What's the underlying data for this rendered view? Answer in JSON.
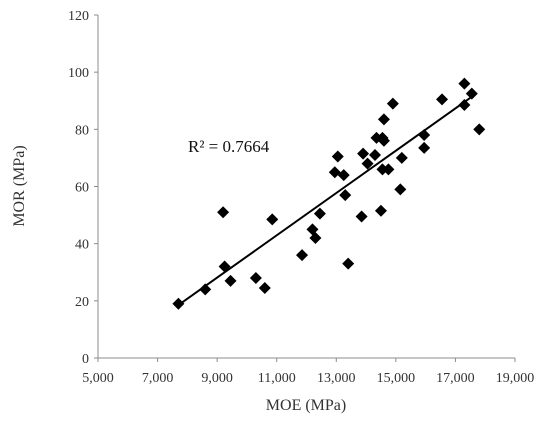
{
  "chart_data": {
    "type": "scatter",
    "title": "",
    "xlabel": "MOE (MPa)",
    "ylabel": "MOR (MPa)",
    "xlim": [
      5000,
      19000
    ],
    "ylim": [
      0,
      120
    ],
    "xticks": [
      5000,
      7000,
      9000,
      11000,
      13000,
      15000,
      17000,
      19000
    ],
    "yticks": [
      0,
      20,
      40,
      60,
      80,
      100,
      120
    ],
    "xtick_labels": [
      "5,000",
      "7,000",
      "9,000",
      "11,000",
      "13,000",
      "15,000",
      "17,000",
      "19,000"
    ],
    "ytick_labels": [
      "0",
      "20",
      "40",
      "60",
      "80",
      "100",
      "120"
    ],
    "grid": false,
    "marker": "diamond",
    "marker_color": "#000000",
    "points": [
      [
        7700,
        19
      ],
      [
        8600,
        24
      ],
      [
        9200,
        51
      ],
      [
        9250,
        32
      ],
      [
        9450,
        27
      ],
      [
        10300,
        28
      ],
      [
        10600,
        24.5
      ],
      [
        10850,
        48.5
      ],
      [
        11850,
        36
      ],
      [
        12200,
        45
      ],
      [
        12300,
        42
      ],
      [
        12450,
        50.5
      ],
      [
        12950,
        65
      ],
      [
        13050,
        70.5
      ],
      [
        13250,
        64
      ],
      [
        13300,
        57
      ],
      [
        13400,
        33
      ],
      [
        13850,
        49.5
      ],
      [
        13900,
        71.5
      ],
      [
        14050,
        68
      ],
      [
        14300,
        71
      ],
      [
        14350,
        77
      ],
      [
        14500,
        51.5
      ],
      [
        14550,
        66
      ],
      [
        14550,
        77
      ],
      [
        14600,
        76
      ],
      [
        14600,
        83.5
      ],
      [
        14750,
        66
      ],
      [
        14900,
        89
      ],
      [
        15150,
        59
      ],
      [
        15200,
        70
      ],
      [
        15950,
        78
      ],
      [
        15950,
        73.5
      ],
      [
        16550,
        90.5
      ],
      [
        17300,
        96
      ],
      [
        17300,
        88.5
      ],
      [
        17550,
        92.5
      ],
      [
        17800,
        80
      ]
    ],
    "trendline": {
      "type": "linear",
      "x": [
        7700,
        17700
      ],
      "y": [
        18.5,
        92.5
      ]
    },
    "annotations": [
      {
        "text": "R² = 0.7664"
      }
    ]
  }
}
